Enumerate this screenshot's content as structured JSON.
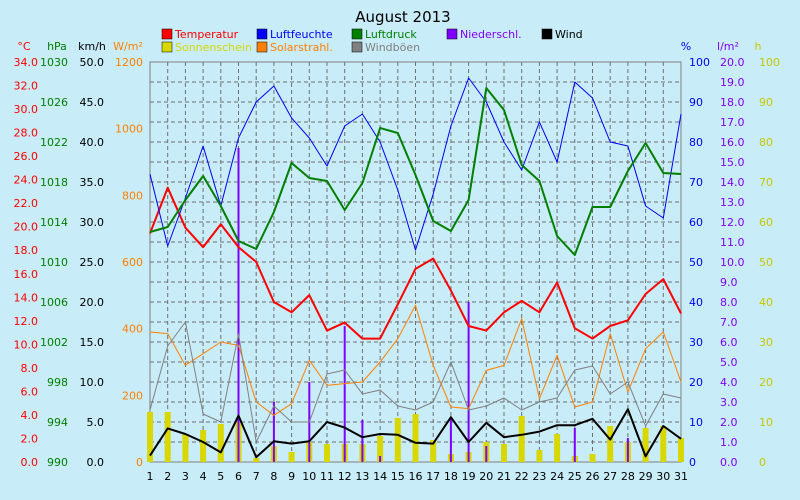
{
  "chart_data": {
    "type": "line",
    "title": "August 2013",
    "x": [
      1,
      2,
      3,
      4,
      5,
      6,
      7,
      8,
      9,
      10,
      11,
      12,
      13,
      14,
      15,
      16,
      17,
      18,
      19,
      20,
      21,
      22,
      23,
      24,
      25,
      26,
      27,
      28,
      29,
      30,
      31
    ],
    "axes": [
      {
        "id": "temp",
        "label": "°C",
        "color": "#ff0000",
        "ticks": [
          "0.0",
          "2.0",
          "4.0",
          "6.0",
          "8.0",
          "10.0",
          "12.0",
          "14.0",
          "16.0",
          "18.0",
          "20.0",
          "22.0",
          "24.0",
          "26.0",
          "28.0",
          "30.0",
          "32.0",
          "34.0"
        ],
        "range": [
          0,
          35
        ]
      },
      {
        "id": "press",
        "label": "hPa",
        "color": "#007f00",
        "ticks": [
          "990",
          "994",
          "998",
          "1002",
          "1006",
          "1010",
          "1014",
          "1018",
          "1022",
          "1026",
          "1030"
        ],
        "range": [
          990,
          1030
        ]
      },
      {
        "id": "wind",
        "label": "km/h",
        "color": "#000000",
        "ticks": [
          "0.0",
          "5.0",
          "10.0",
          "15.0",
          "20.0",
          "25.0",
          "30.0",
          "35.0",
          "40.0",
          "45.0",
          "50.0"
        ],
        "range": [
          0,
          50
        ]
      },
      {
        "id": "solar",
        "label": "W/m²",
        "color": "#ff8000",
        "ticks": [
          "0",
          "200",
          "400",
          "600",
          "800",
          "1000",
          "1200"
        ],
        "range": [
          0,
          1200
        ]
      },
      {
        "id": "hum",
        "label": "%",
        "color": "#0000ff",
        "ticks": [
          "0",
          "10",
          "20",
          "30",
          "40",
          "50",
          "60",
          "70",
          "80",
          "90",
          "100"
        ],
        "range": [
          0,
          100
        ]
      },
      {
        "id": "rain",
        "label": "l/m²",
        "color": "#8000ff",
        "ticks": [
          "0.0",
          "1.0",
          "2.0",
          "3.0",
          "4.0",
          "5.0",
          "6.0",
          "7.0",
          "8.0",
          "9.0",
          "10.0",
          "11.0",
          "12.0",
          "13.0",
          "14.0",
          "15.0",
          "16.0",
          "17.0",
          "18.0",
          "19.0",
          "20.0"
        ],
        "range": [
          0,
          20
        ]
      },
      {
        "id": "sun",
        "label": "h",
        "color": "#c8c800",
        "ticks": [
          "0",
          "10",
          "20",
          "30",
          "40",
          "50",
          "60",
          "70",
          "80",
          "90",
          "100"
        ],
        "range": [
          0,
          100
        ]
      }
    ],
    "legend": [
      {
        "name": "Temperatur",
        "color": "#ff0000"
      },
      {
        "name": "Luftfeuchte",
        "color": "#0000ff"
      },
      {
        "name": "Luftdruck",
        "color": "#007f00"
      },
      {
        "name": "Niederschl.",
        "color": "#8000ff"
      },
      {
        "name": "Wind",
        "color": "#000000"
      },
      {
        "name": "Sonnenschein",
        "color": "#d8d800"
      },
      {
        "name": "Solarstrahl.",
        "color": "#ff8000"
      },
      {
        "name": "Windböen",
        "color": "#808080"
      }
    ],
    "series": [
      {
        "name": "Temperatur",
        "axis": "temp",
        "color": "#ff0000",
        "width": 2,
        "values": [
          20.0,
          24.0,
          20.5,
          18.8,
          20.8,
          18.8,
          17.5,
          14.0,
          13.1,
          14.6,
          11.5,
          12.2,
          10.8,
          10.8,
          13.8,
          16.9,
          17.8,
          15.0,
          11.9,
          11.5,
          13.1,
          14.1,
          13.1,
          15.7,
          11.7,
          10.8,
          11.9,
          12.4,
          14.7,
          16.0,
          13.0
        ]
      },
      {
        "name": "Luftfeuchte",
        "axis": "hum",
        "color": "#0000ff",
        "width": 1,
        "values": [
          72,
          54,
          66,
          79,
          64,
          81,
          90,
          94,
          86,
          81,
          74,
          84,
          87,
          80,
          68,
          53,
          67,
          84,
          96,
          90,
          80,
          73,
          85,
          75,
          95,
          91,
          80,
          79,
          64,
          61,
          87
        ]
      },
      {
        "name": "Luftdruck",
        "axis": "press",
        "color": "#007f00",
        "width": 2,
        "values": [
          1013.0,
          1013.5,
          1016.2,
          1018.6,
          1015.6,
          1012.1,
          1011.3,
          1015.0,
          1019.9,
          1018.4,
          1018.1,
          1015.2,
          1017.9,
          1023.4,
          1022.9,
          1018.7,
          1014.1,
          1013.1,
          1016.2,
          1027.4,
          1025.2,
          1019.7,
          1018.1,
          1012.6,
          1010.7,
          1015.5,
          1015.5,
          1019.1,
          1021.9,
          1018.9,
          1018.8
        ]
      },
      {
        "name": "Solarstrahl.",
        "axis": "solar",
        "color": "#ff8000",
        "width": 1,
        "values": [
          390,
          385,
          290,
          325,
          360,
          350,
          180,
          140,
          175,
          305,
          230,
          235,
          240,
          300,
          370,
          470,
          290,
          165,
          160,
          275,
          290,
          430,
          190,
          320,
          165,
          180,
          385,
          210,
          340,
          390,
          240
        ]
      },
      {
        "name": "Windböen",
        "axis": "wind",
        "color": "#808080",
        "width": 1,
        "values": [
          6.5,
          14.5,
          17.5,
          6.0,
          5.0,
          16.0,
          2.5,
          7.0,
          5.0,
          5.0,
          11.0,
          11.5,
          8.5,
          9.0,
          7.0,
          6.5,
          7.5,
          12.5,
          6.5,
          7.0,
          8.0,
          6.5,
          7.5,
          8.0,
          11.5,
          12.0,
          8.5,
          10.0,
          4.5,
          8.5,
          8.0
        ]
      },
      {
        "name": "Wind",
        "axis": "wind",
        "color": "#000000",
        "width": 2,
        "values": [
          0.8,
          4.2,
          3.5,
          2.5,
          1.2,
          5.8,
          0.6,
          2.6,
          2.3,
          2.6,
          5.0,
          4.3,
          3.1,
          3.5,
          3.4,
          2.4,
          2.3,
          5.6,
          2.5,
          4.9,
          3.1,
          3.4,
          3.8,
          4.6,
          4.6,
          5.4,
          2.8,
          6.6,
          0.7,
          4.5,
          2.9
        ]
      }
    ],
    "bars": [
      {
        "name": "Sonnenschein",
        "axis": "sun",
        "color": "#d8d800",
        "values": [
          12.5,
          12.5,
          7,
          8,
          9.5,
          10,
          1,
          4,
          2.5,
          5,
          4.5,
          4.5,
          4.5,
          6.5,
          11,
          12,
          5.5,
          2,
          2.5,
          5,
          4.5,
          11.5,
          3,
          7,
          1.5,
          2,
          9,
          5,
          8.5,
          9,
          6
        ]
      },
      {
        "name": "Niederschl.",
        "axis": "rain",
        "color": "#8000ff",
        "values": [
          0,
          0,
          0,
          0,
          0,
          15.7,
          0,
          3.0,
          0,
          4.0,
          0,
          6.8,
          2.1,
          0.3,
          0,
          0,
          0,
          2.2,
          8.0,
          0.8,
          0,
          0,
          0,
          0,
          1.7,
          0,
          0,
          1.2,
          0,
          0,
          0
        ]
      }
    ],
    "grid": true,
    "legend_position": "top"
  }
}
